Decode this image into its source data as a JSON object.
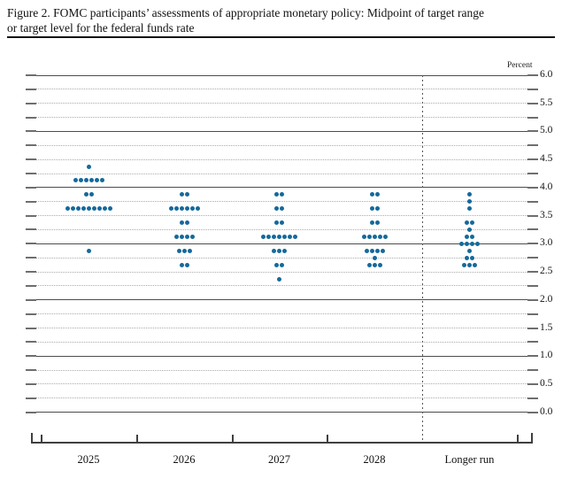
{
  "figure": {
    "title_line1": "Figure 2. FOMC participants’ assessments of appropriate monetary policy: Midpoint of target range",
    "title_line2": "or target level for the federal funds rate"
  },
  "chart_data": {
    "type": "scatter",
    "subtype": "fomc-dot-plot",
    "title": "Figure 2. FOMC participants’ assessments of appropriate monetary policy: Midpoint of target range or target level for the federal funds rate",
    "unit_label": "Percent",
    "ylim": [
      0.0,
      6.0
    ],
    "ytick_minor_step": 0.25,
    "grid": true,
    "legend": "none",
    "yticks": [
      {
        "value": 6.0,
        "label": "6.0"
      },
      {
        "value": 5.5,
        "label": "5.5"
      },
      {
        "value": 5.0,
        "label": "5.0"
      },
      {
        "value": 4.5,
        "label": "4.5"
      },
      {
        "value": 4.0,
        "label": "4.0"
      },
      {
        "value": 3.5,
        "label": "3.5"
      },
      {
        "value": 3.0,
        "label": "3.0"
      },
      {
        "value": 2.5,
        "label": "2.5"
      },
      {
        "value": 2.0,
        "label": "2.0"
      },
      {
        "value": 1.5,
        "label": "1.5"
      },
      {
        "value": 1.0,
        "label": "1.0"
      },
      {
        "value": 0.5,
        "label": "0.5"
      },
      {
        "value": 0.0,
        "label": "0.0"
      }
    ],
    "categories": [
      "2025",
      "2026",
      "2027",
      "2028",
      "Longer run"
    ],
    "separator_before_category": "Longer run",
    "dot_color": "#15699b",
    "series": [
      {
        "name": "2025",
        "dots": [
          {
            "value": 4.375,
            "count": 1
          },
          {
            "value": 4.125,
            "count": 6
          },
          {
            "value": 3.875,
            "count": 2
          },
          {
            "value": 3.625,
            "count": 9
          },
          {
            "value": 2.875,
            "count": 1
          }
        ]
      },
      {
        "name": "2026",
        "dots": [
          {
            "value": 3.875,
            "count": 2
          },
          {
            "value": 3.625,
            "count": 6
          },
          {
            "value": 3.375,
            "count": 2
          },
          {
            "value": 3.125,
            "count": 4
          },
          {
            "value": 2.875,
            "count": 3
          },
          {
            "value": 2.625,
            "count": 2
          }
        ]
      },
      {
        "name": "2027",
        "dots": [
          {
            "value": 3.875,
            "count": 2
          },
          {
            "value": 3.625,
            "count": 2
          },
          {
            "value": 3.375,
            "count": 2
          },
          {
            "value": 3.125,
            "count": 7
          },
          {
            "value": 2.875,
            "count": 3
          },
          {
            "value": 2.625,
            "count": 2
          },
          {
            "value": 2.375,
            "count": 1
          }
        ]
      },
      {
        "name": "2028",
        "dots": [
          {
            "value": 3.875,
            "count": 2
          },
          {
            "value": 3.625,
            "count": 2
          },
          {
            "value": 3.375,
            "count": 2
          },
          {
            "value": 3.125,
            "count": 5
          },
          {
            "value": 2.875,
            "count": 4
          },
          {
            "value": 2.75,
            "count": 1
          },
          {
            "value": 2.625,
            "count": 3
          }
        ]
      },
      {
        "name": "Longer run",
        "dots": [
          {
            "value": 3.875,
            "count": 1
          },
          {
            "value": 3.75,
            "count": 1
          },
          {
            "value": 3.625,
            "count": 1
          },
          {
            "value": 3.375,
            "count": 2
          },
          {
            "value": 3.25,
            "count": 1
          },
          {
            "value": 3.125,
            "count": 2
          },
          {
            "value": 3.0,
            "count": 4
          },
          {
            "value": 2.875,
            "count": 1
          },
          {
            "value": 2.75,
            "count": 2
          },
          {
            "value": 2.625,
            "count": 3
          }
        ]
      }
    ]
  }
}
